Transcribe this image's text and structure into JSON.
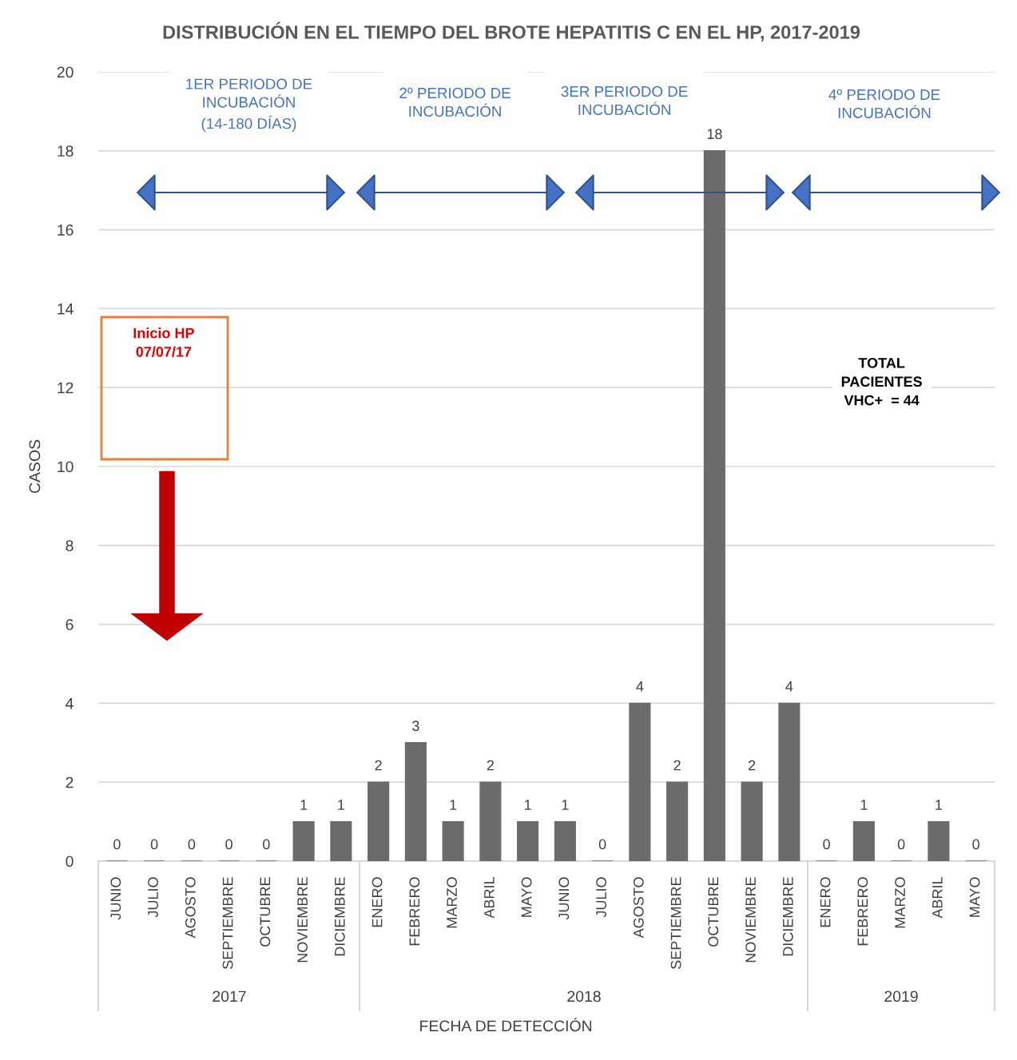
{
  "chart_data": {
    "type": "bar",
    "title": "DISTRIBUCIÓN EN EL TIEMPO DEL BROTE HEPATITIS C EN EL HP, 2017-2019",
    "xlabel": "FECHA DE DETECCIÓN",
    "ylabel": "CASOS",
    "categories": [
      "JUNIO",
      "JULIO",
      "AGOSTO",
      "SEPTIEMBRE",
      "OCTUBRE",
      "NOVIEMBRE",
      "DICIEMBRE",
      "ENERO",
      "FEBRERO",
      "MARZO",
      "ABRIL",
      "MAYO",
      "JUNIO",
      "JULIO",
      "AGOSTO",
      "SEPTIEMBRE",
      "OCTUBRE",
      "NOVIEMBRE",
      "DICIEMBRE",
      "ENERO",
      "FEBRERO",
      "MARZO",
      "ABRIL",
      "MAYO"
    ],
    "values": [
      0,
      0,
      0,
      0,
      0,
      1,
      1,
      2,
      3,
      1,
      2,
      1,
      1,
      0,
      4,
      2,
      18,
      2,
      4,
      0,
      1,
      0,
      1,
      0
    ],
    "color": "#6b6b6b",
    "ylim": [
      0,
      20
    ],
    "yticks": [
      0,
      2,
      4,
      6,
      8,
      10,
      12,
      14,
      16,
      18,
      20
    ],
    "grid": "y",
    "data_labels": true,
    "annotations": [
      "1ER PERIODO DE\nINCUBACIÓN\n(14-180 DÍAS)",
      "2º PERIODO DE\nINCUBACIÓN",
      "3ER PERIODO DE\nINCUBACIÓN",
      "4º PERIODO DE\nINCUBACIÓN",
      "Inicio HP\n07/07/17",
      "TOTAL\nPACIENTES\nVHC+  = 44",
      "2017",
      "2018",
      "2019"
    ]
  }
}
